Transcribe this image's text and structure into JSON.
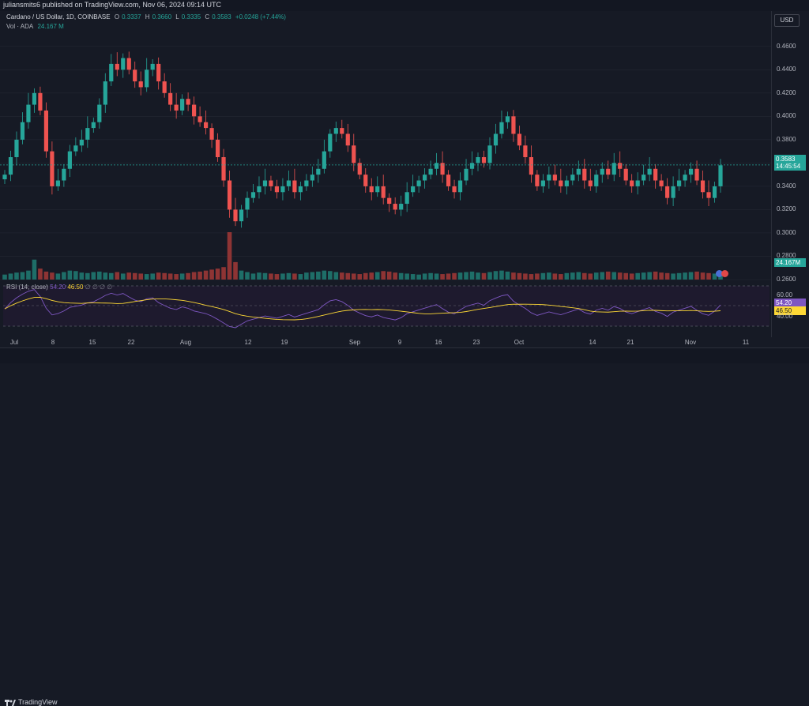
{
  "header": {
    "publish_line": "juliansmits6 published on TradingView.com, Nov 06, 2024 09:14 UTC"
  },
  "symbol": {
    "name": "Cardano / US Dollar, 1D, COINBASE",
    "open_label": "O",
    "open": "0.3337",
    "high_label": "H",
    "high": "0.3660",
    "low_label": "L",
    "low": "0.3335",
    "close_label": "C",
    "close": "0.3583",
    "change": "+0.0248 (+7.44%)"
  },
  "volume_legend": {
    "label": "Vol · ADA",
    "value": "24.167 M"
  },
  "currency_button": "USD",
  "price_axis": {
    "ticks": [
      "0.4600",
      "0.4400",
      "0.4200",
      "0.4000",
      "0.3800",
      "0.3600",
      "0.3400",
      "0.3200",
      "0.3000",
      "0.2800",
      "0.2600"
    ]
  },
  "last_price_tag": {
    "price": "0.3583",
    "countdown": "14:45:54"
  },
  "volume_tag": "24.167M",
  "rsi": {
    "label": "RSI (14, close)",
    "value": "54.20",
    "ma_value": "46.50",
    "extra": "∅ ∅ ∅ ∅",
    "ticks": [
      "60.00",
      "40.00"
    ],
    "tag_value": "54.20",
    "tag_ma": "46.50"
  },
  "date_axis": [
    "Jul",
    "8",
    "15",
    "22",
    "Aug",
    "12",
    "19",
    "Sep",
    "9",
    "16",
    "23",
    "Oct",
    "14",
    "21",
    "Nov",
    "11"
  ],
  "footer": {
    "brand": "TradingView"
  },
  "colors": {
    "up": "#26a69a",
    "down": "#ef5350",
    "rsi_line": "#7e57c2",
    "rsi_ma": "#fdd835",
    "background": "#161a25"
  },
  "chart_data": {
    "type": "candlestick",
    "title": "Cardano / US Dollar, 1D, COINBASE",
    "ylim": [
      0.26,
      0.47
    ],
    "close": [
      0.35,
      0.365,
      0.38,
      0.395,
      0.41,
      0.42,
      0.405,
      0.37,
      0.34,
      0.345,
      0.355,
      0.37,
      0.375,
      0.38,
      0.39,
      0.395,
      0.41,
      0.43,
      0.445,
      0.44,
      0.45,
      0.44,
      0.43,
      0.425,
      0.44,
      0.445,
      0.43,
      0.42,
      0.41,
      0.405,
      0.415,
      0.41,
      0.4,
      0.395,
      0.39,
      0.38,
      0.365,
      0.345,
      0.32,
      0.31,
      0.32,
      0.33,
      0.335,
      0.34,
      0.345,
      0.34,
      0.335,
      0.34,
      0.345,
      0.335,
      0.34,
      0.345,
      0.35,
      0.355,
      0.37,
      0.385,
      0.39,
      0.385,
      0.375,
      0.36,
      0.35,
      0.34,
      0.335,
      0.34,
      0.33,
      0.325,
      0.32,
      0.325,
      0.335,
      0.34,
      0.345,
      0.35,
      0.355,
      0.36,
      0.35,
      0.34,
      0.335,
      0.345,
      0.355,
      0.36,
      0.365,
      0.36,
      0.375,
      0.385,
      0.395,
      0.4,
      0.385,
      0.375,
      0.365,
      0.35,
      0.34,
      0.345,
      0.35,
      0.345,
      0.34,
      0.345,
      0.35,
      0.355,
      0.345,
      0.34,
      0.35,
      0.355,
      0.35,
      0.36,
      0.355,
      0.345,
      0.34,
      0.345,
      0.35,
      0.355,
      0.345,
      0.34,
      0.33,
      0.34,
      0.345,
      0.35,
      0.355,
      0.345,
      0.335,
      0.33,
      0.34,
      0.358
    ],
    "volume": [
      10,
      12,
      14,
      15,
      18,
      40,
      22,
      16,
      14,
      12,
      15,
      18,
      17,
      14,
      13,
      15,
      16,
      14,
      13,
      15,
      12,
      14,
      13,
      12,
      11,
      12,
      14,
      13,
      12,
      11,
      12,
      13,
      15,
      16,
      18,
      20,
      22,
      25,
      95,
      35,
      18,
      15,
      12,
      14,
      13,
      12,
      11,
      12,
      13,
      12,
      11,
      14,
      15,
      16,
      18,
      17,
      15,
      14,
      13,
      12,
      11,
      13,
      14,
      15,
      17,
      16,
      14,
      13,
      12,
      11,
      10,
      12,
      13,
      12,
      11,
      12,
      13,
      14,
      15,
      16,
      14,
      13,
      15,
      17,
      18,
      16,
      14,
      13,
      12,
      11,
      12,
      13,
      14,
      12,
      11,
      13,
      14,
      15,
      13,
      12,
      14,
      15,
      16,
      15,
      14,
      13,
      12,
      13,
      14,
      15,
      16,
      14,
      13,
      12,
      13,
      14,
      15,
      16,
      14,
      13,
      12,
      14
    ]
  }
}
